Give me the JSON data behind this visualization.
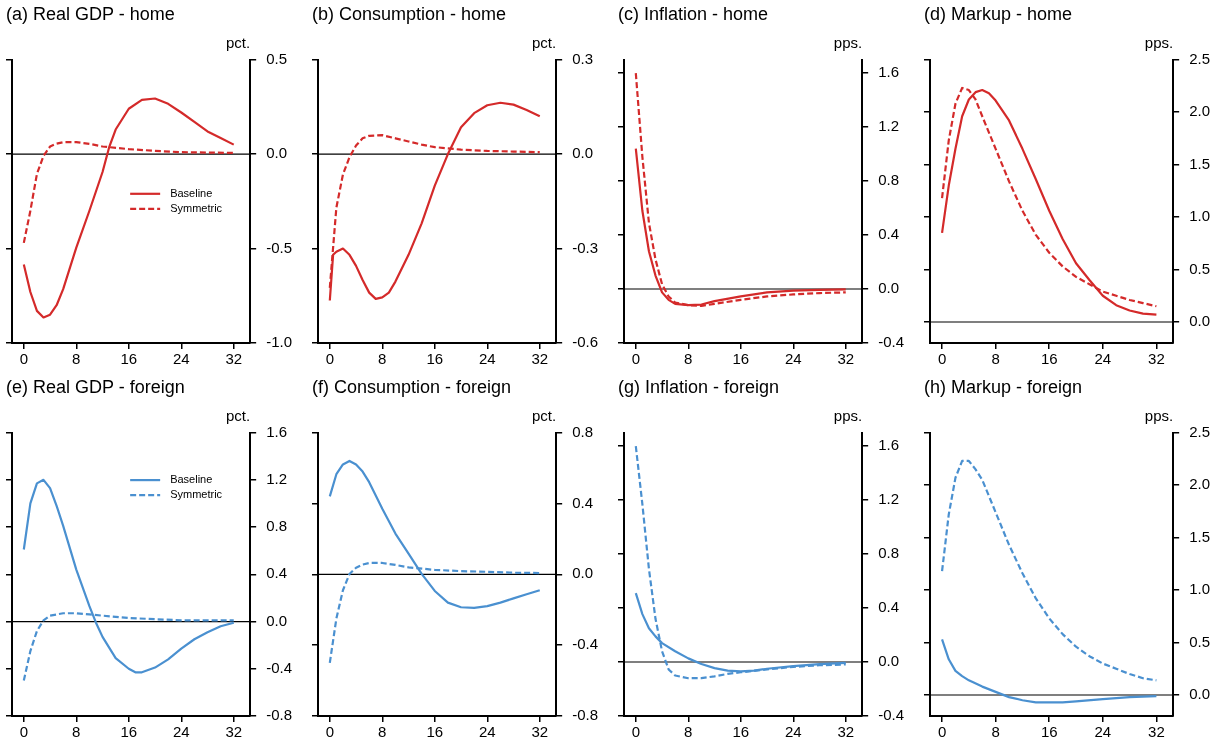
{
  "chart_data": [
    {
      "type": "line",
      "title": "(a) Real GDP - home",
      "ylabel": "pct.",
      "xlim": [
        -1.8,
        34.5
      ],
      "xticks": [
        0,
        8,
        16,
        24,
        32
      ],
      "ylim": [
        -1.0,
        0.5
      ],
      "yticks": [
        {
          "value": -1.0,
          "label": "-1.0"
        },
        -0.5,
        {
          "value": 0,
          "label": "0.0"
        },
        0.5
      ],
      "legend": "center right",
      "ref_lines": [
        {
          "axis": "y",
          "value": 0,
          "color": "#000000"
        }
      ],
      "series": [
        {
          "name": "Baseline",
          "color": "#d42a2a",
          "line_style": "solid",
          "x": [
            0,
            1,
            2,
            3,
            4,
            5,
            6,
            8,
            10,
            12,
            13,
            14,
            16,
            18,
            20,
            22,
            24,
            26,
            28,
            30,
            32
          ],
          "values": [
            -0.585,
            -0.73,
            -0.83,
            -0.865,
            -0.85,
            -0.8,
            -0.715,
            -0.495,
            -0.3,
            -0.095,
            0.035,
            0.13,
            0.24,
            0.287,
            0.294,
            0.266,
            0.22,
            0.17,
            0.12,
            0.085,
            0.05
          ]
        },
        {
          "name": "Symmetric",
          "color": "#d42a2a",
          "line_style": "dashed",
          "x": [
            0,
            1,
            2,
            3,
            4,
            5,
            6,
            8,
            10,
            12,
            16,
            20,
            24,
            28,
            32
          ],
          "values": [
            -0.47,
            -0.3,
            -0.105,
            -0.01,
            0.04,
            0.055,
            0.063,
            0.063,
            0.054,
            0.04,
            0.026,
            0.017,
            0.01,
            0.008,
            0.006
          ]
        }
      ]
    },
    {
      "type": "line",
      "title": "(b) Consumption - home",
      "ylabel": "pct.",
      "xlim": [
        -1.8,
        34.5
      ],
      "xticks": [
        0,
        8,
        16,
        24,
        32
      ],
      "ylim": [
        -0.6,
        0.3
      ],
      "yticks": [
        -0.6,
        -0.3,
        {
          "value": 0,
          "label": "0.0"
        },
        0.3
      ],
      "ref_lines": [
        {
          "axis": "y",
          "value": 0,
          "color": "#000000"
        }
      ],
      "series": [
        {
          "color": "#d42a2a",
          "line_style": "solid",
          "x": [
            0,
            0.5,
            1,
            2,
            3,
            4,
            5,
            6,
            7,
            8,
            9,
            10,
            12,
            14,
            16,
            18,
            20,
            22,
            24,
            26,
            28,
            30,
            32
          ],
          "values": [
            -0.465,
            -0.32,
            -0.31,
            -0.3,
            -0.32,
            -0.355,
            -0.4,
            -0.44,
            -0.46,
            -0.455,
            -0.44,
            -0.405,
            -0.32,
            -0.22,
            -0.1,
            0.0,
            0.085,
            0.13,
            0.155,
            0.163,
            0.157,
            0.14,
            0.12
          ]
        },
        {
          "color": "#d42a2a",
          "line_style": "dashed",
          "x": [
            0,
            1,
            2,
            3,
            4,
            5,
            6,
            8,
            10,
            12,
            14,
            16,
            20,
            24,
            28,
            32
          ],
          "values": [
            -0.425,
            -0.17,
            -0.065,
            -0.01,
            0.027,
            0.05,
            0.058,
            0.06,
            0.05,
            0.04,
            0.03,
            0.022,
            0.014,
            0.01,
            0.008,
            0.006
          ]
        }
      ]
    },
    {
      "type": "line",
      "title": "(c) Inflation - home",
      "ylabel": "pps.",
      "xlim": [
        -1.8,
        34.5
      ],
      "xticks": [
        0,
        8,
        16,
        24,
        32
      ],
      "ylim": [
        -0.4,
        1.7
      ],
      "yticks": [
        -0.4,
        {
          "value": 0,
          "label": "0.0"
        },
        0.4,
        0.8,
        1.2,
        1.6
      ],
      "ref_lines": [
        {
          "axis": "y",
          "value": 0,
          "color": "#000000"
        }
      ],
      "series": [
        {
          "color": "#d42a2a",
          "line_style": "solid",
          "x": [
            0,
            1,
            2,
            3,
            4,
            5,
            6,
            8,
            10,
            12,
            16,
            20,
            24,
            28,
            32
          ],
          "values": [
            1.04,
            0.58,
            0.28,
            0.1,
            -0.025,
            -0.08,
            -0.11,
            -0.12,
            -0.115,
            -0.09,
            -0.055,
            -0.025,
            -0.012,
            -0.006,
            -0.003
          ]
        },
        {
          "color": "#d42a2a",
          "line_style": "dashed",
          "x": [
            0,
            1,
            2,
            3,
            4,
            5,
            6,
            8,
            10,
            12,
            16,
            20,
            24,
            28,
            32
          ],
          "values": [
            1.6,
            0.98,
            0.49,
            0.22,
            0.035,
            -0.055,
            -0.1,
            -0.12,
            -0.125,
            -0.11,
            -0.08,
            -0.055,
            -0.04,
            -0.03,
            -0.025
          ]
        }
      ]
    },
    {
      "type": "line",
      "title": "(d) Markup - home",
      "ylabel": "pps.",
      "xlim": [
        -1.8,
        34.5
      ],
      "xticks": [
        0,
        8,
        16,
        24,
        32
      ],
      "ylim": [
        -0.2,
        2.5
      ],
      "yticks": [
        {
          "value": 0,
          "label": "0.0"
        },
        0.5,
        {
          "value": 1,
          "label": "1.0"
        },
        1.5,
        {
          "value": 2,
          "label": "2.0"
        },
        2.5
      ],
      "ref_lines": [
        {
          "axis": "y",
          "value": 0,
          "color": "#000000"
        }
      ],
      "series": [
        {
          "color": "#d42a2a",
          "line_style": "solid",
          "x": [
            0,
            1,
            2,
            3,
            4,
            5,
            6,
            7,
            8,
            10,
            12,
            14,
            16,
            18,
            20,
            22,
            24,
            26,
            28,
            30,
            32
          ],
          "values": [
            0.85,
            1.3,
            1.65,
            1.96,
            2.12,
            2.19,
            2.21,
            2.18,
            2.11,
            1.92,
            1.65,
            1.36,
            1.06,
            0.79,
            0.56,
            0.4,
            0.25,
            0.16,
            0.11,
            0.08,
            0.07
          ]
        },
        {
          "color": "#d42a2a",
          "line_style": "dashed",
          "x": [
            0,
            1,
            2,
            3,
            4,
            5,
            6,
            8,
            10,
            12,
            14,
            16,
            18,
            20,
            22,
            24,
            26,
            28,
            30,
            32
          ],
          "values": [
            1.18,
            1.73,
            2.08,
            2.23,
            2.21,
            2.12,
            1.96,
            1.65,
            1.34,
            1.06,
            0.83,
            0.66,
            0.53,
            0.43,
            0.36,
            0.29,
            0.25,
            0.21,
            0.18,
            0.15
          ]
        }
      ]
    },
    {
      "type": "line",
      "title": "(e) Real GDP - foreign",
      "ylabel": "pct.",
      "xlim": [
        -1.8,
        34.5
      ],
      "xticks": [
        0,
        8,
        16,
        24,
        32
      ],
      "ylim": [
        -0.8,
        1.6
      ],
      "yticks": [
        -0.8,
        -0.4,
        {
          "value": 0,
          "label": "0.0"
        },
        0.4,
        0.8,
        1.2,
        1.6
      ],
      "legend": "top right",
      "ref_lines": [
        {
          "axis": "y",
          "value": 0,
          "color": "#000000"
        }
      ],
      "series": [
        {
          "name": "Baseline",
          "color": "#4a90d0",
          "line_style": "solid",
          "x": [
            0,
            1,
            2,
            3,
            4,
            5,
            6,
            8,
            10,
            11,
            12,
            14,
            16,
            17,
            18,
            20,
            22,
            24,
            26,
            28,
            30,
            32
          ],
          "values": [
            0.61,
            1.0,
            1.17,
            1.2,
            1.13,
            0.98,
            0.81,
            0.44,
            0.13,
            -0.01,
            -0.13,
            -0.31,
            -0.4,
            -0.43,
            -0.43,
            -0.39,
            -0.32,
            -0.23,
            -0.15,
            -0.09,
            -0.04,
            -0.01
          ]
        },
        {
          "name": "Symmetric",
          "color": "#4a90d0",
          "line_style": "dashed",
          "x": [
            0,
            1,
            2,
            3,
            4,
            5,
            6,
            8,
            10,
            12,
            16,
            20,
            24,
            28,
            32
          ],
          "values": [
            -0.5,
            -0.25,
            -0.08,
            0.01,
            0.05,
            0.06,
            0.07,
            0.07,
            0.06,
            0.05,
            0.03,
            0.02,
            0.01,
            0.01,
            0.01
          ]
        }
      ]
    },
    {
      "type": "line",
      "title": "(f) Consumption - foreign",
      "ylabel": "pct.",
      "xlim": [
        -1.8,
        34.5
      ],
      "xticks": [
        0,
        8,
        16,
        24,
        32
      ],
      "ylim": [
        -0.8,
        0.8
      ],
      "yticks": [
        -0.8,
        -0.4,
        {
          "value": 0,
          "label": "0.0"
        },
        0.4,
        0.8
      ],
      "ref_lines": [
        {
          "axis": "y",
          "value": 0,
          "color": "#000000"
        }
      ],
      "series": [
        {
          "color": "#4a90d0",
          "line_style": "solid",
          "x": [
            0,
            1,
            2,
            3,
            4,
            5,
            6,
            8,
            10,
            12,
            14,
            16,
            18,
            20,
            22,
            24,
            26,
            28,
            30,
            32
          ],
          "values": [
            0.44,
            0.565,
            0.62,
            0.64,
            0.62,
            0.58,
            0.52,
            0.37,
            0.23,
            0.117,
            0.002,
            -0.094,
            -0.16,
            -0.186,
            -0.19,
            -0.18,
            -0.16,
            -0.136,
            -0.113,
            -0.09
          ]
        },
        {
          "color": "#4a90d0",
          "line_style": "dashed",
          "x": [
            0,
            1,
            2,
            3,
            4,
            5,
            6,
            8,
            10,
            12,
            16,
            20,
            24,
            28,
            32
          ],
          "values": [
            -0.5,
            -0.25,
            -0.09,
            0.002,
            0.037,
            0.055,
            0.064,
            0.064,
            0.053,
            0.039,
            0.025,
            0.018,
            0.014,
            0.009,
            0.007
          ]
        }
      ]
    },
    {
      "type": "line",
      "title": "(g) Inflation - foreign",
      "ylabel": "pps.",
      "xlim": [
        -1.8,
        34.5
      ],
      "xticks": [
        0,
        8,
        16,
        24,
        32
      ],
      "ylim": [
        -0.4,
        1.7
      ],
      "yticks": [
        -0.4,
        {
          "value": 0,
          "label": "0.0"
        },
        0.4,
        0.8,
        1.2,
        1.6
      ],
      "ref_lines": [
        {
          "axis": "y",
          "value": 0,
          "color": "#000000"
        }
      ],
      "series": [
        {
          "color": "#4a90d0",
          "line_style": "solid",
          "x": [
            0,
            1,
            2,
            3,
            4,
            6,
            8,
            10,
            12,
            14,
            16,
            18,
            20,
            24,
            28,
            32
          ],
          "values": [
            0.51,
            0.355,
            0.25,
            0.19,
            0.14,
            0.08,
            0.027,
            -0.015,
            -0.045,
            -0.064,
            -0.07,
            -0.064,
            -0.05,
            -0.03,
            -0.015,
            -0.006
          ]
        },
        {
          "color": "#4a90d0",
          "line_style": "dashed",
          "x": [
            0,
            1,
            2,
            3,
            4,
            5,
            6,
            8,
            10,
            12,
            14,
            16,
            20,
            24,
            28,
            32
          ],
          "values": [
            1.6,
            1.17,
            0.69,
            0.32,
            0.08,
            -0.055,
            -0.1,
            -0.12,
            -0.12,
            -0.106,
            -0.088,
            -0.076,
            -0.055,
            -0.036,
            -0.024,
            -0.018
          ]
        }
      ]
    },
    {
      "type": "line",
      "title": "(h) Markup - foreign",
      "ylabel": "pps.",
      "xlim": [
        -1.8,
        34.5
      ],
      "xticks": [
        0,
        8,
        16,
        24,
        32
      ],
      "ylim": [
        -0.2,
        2.5
      ],
      "yticks": [
        {
          "value": 0,
          "label": "0.0"
        },
        0.5,
        {
          "value": 1,
          "label": "1.0"
        },
        1.5,
        {
          "value": 2,
          "label": "2.0"
        },
        2.5
      ],
      "ref_lines": [
        {
          "axis": "y",
          "value": 0,
          "color": "#000000"
        }
      ],
      "series": [
        {
          "color": "#4a90d0",
          "line_style": "solid",
          "x": [
            0,
            1,
            2,
            3,
            4,
            6,
            8,
            10,
            12,
            14,
            16,
            18,
            20,
            24,
            28,
            32
          ],
          "values": [
            0.53,
            0.34,
            0.23,
            0.18,
            0.14,
            0.08,
            0.03,
            -0.02,
            -0.05,
            -0.07,
            -0.07,
            -0.07,
            -0.06,
            -0.04,
            -0.02,
            -0.01
          ]
        },
        {
          "color": "#4a90d0",
          "line_style": "dashed",
          "x": [
            0,
            1,
            2,
            3,
            4,
            5,
            6,
            8,
            10,
            12,
            14,
            16,
            18,
            20,
            22,
            24,
            26,
            28,
            30,
            32
          ],
          "values": [
            1.18,
            1.72,
            2.07,
            2.23,
            2.23,
            2.15,
            2.05,
            1.74,
            1.43,
            1.16,
            0.92,
            0.73,
            0.58,
            0.46,
            0.37,
            0.3,
            0.25,
            0.2,
            0.16,
            0.14
          ]
        }
      ]
    }
  ]
}
